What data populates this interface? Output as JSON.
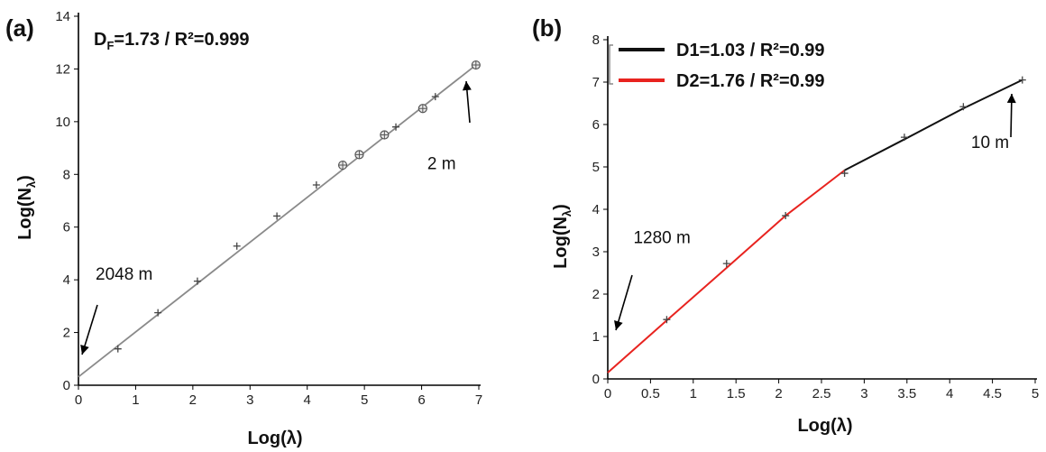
{
  "chart_data": [
    {
      "type": "line",
      "panel_label": "(a)",
      "legend_text": "D",
      "legend_sub": "F",
      "legend_rest": "=1.73 / R²=0.999",
      "xlabel": "Log(λ)",
      "ylabel_main": "Log(N",
      "ylabel_sub": "λ",
      "ylabel_close": ")",
      "xlim": [
        0,
        7
      ],
      "ylim": [
        0,
        14
      ],
      "xticks": [
        "0",
        "1",
        "2",
        "3",
        "4",
        "5",
        "6",
        "7"
      ],
      "yticks": [
        "0",
        "2",
        "4",
        "6",
        "8",
        "10",
        "12",
        "14"
      ],
      "fit_line": {
        "x": [
          0,
          6.95
        ],
        "y": [
          0.32,
          12.15
        ],
        "color": "#8a8a8a"
      },
      "points_plus": {
        "x": [
          0.69,
          1.39,
          2.08,
          2.77,
          3.47,
          4.16,
          5.55,
          6.24
        ],
        "y": [
          1.38,
          2.75,
          3.95,
          5.28,
          6.42,
          7.6,
          9.8,
          10.95
        ]
      },
      "points_circle": {
        "x": [
          4.62,
          4.91,
          5.35,
          6.02,
          6.95
        ],
        "y": [
          8.35,
          8.75,
          9.5,
          10.5,
          12.15
        ]
      },
      "annotations": [
        {
          "text": "2048 m",
          "x": 0.3,
          "y": 4.0
        },
        {
          "text": "2 m",
          "x": 6.1,
          "y": 8.2
        }
      ]
    },
    {
      "type": "line",
      "panel_label": "(b)",
      "xlabel": "Log(λ)",
      "ylabel_main": "Log(N",
      "ylabel_sub": "λ",
      "ylabel_close": ")",
      "xlim": [
        0,
        5
      ],
      "ylim": [
        0,
        8
      ],
      "xticks": [
        "0",
        "0.5",
        "1",
        "1.5",
        "2",
        "2.5",
        "3",
        "3.5",
        "4",
        "4.5",
        "5"
      ],
      "yticks": [
        "0",
        "1",
        "2",
        "3",
        "4",
        "5",
        "6",
        "7",
        "8"
      ],
      "series": [
        {
          "name": "D1=1.03 / R²=0.99",
          "color": "#111111",
          "x": [
            2.77,
            3.47,
            4.16,
            4.85
          ],
          "y": [
            4.92,
            5.65,
            6.38,
            7.05
          ]
        },
        {
          "name": "D2=1.76 / R²=0.99",
          "color": "#e8231f",
          "x": [
            0,
            0.69,
            1.39,
            2.08,
            2.77
          ],
          "y": [
            0.15,
            1.38,
            2.62,
            3.85,
            4.92
          ]
        }
      ],
      "points_plus": {
        "x": [
          0.69,
          1.39,
          2.08,
          2.77,
          3.47,
          4.16,
          4.85
        ],
        "y": [
          1.4,
          2.72,
          3.85,
          4.85,
          5.7,
          6.42,
          7.05
        ]
      },
      "annotations": [
        {
          "text": "1280 m",
          "x": 0.3,
          "y": 3.2
        },
        {
          "text": "10 m",
          "x": 4.25,
          "y": 5.45
        }
      ]
    }
  ]
}
